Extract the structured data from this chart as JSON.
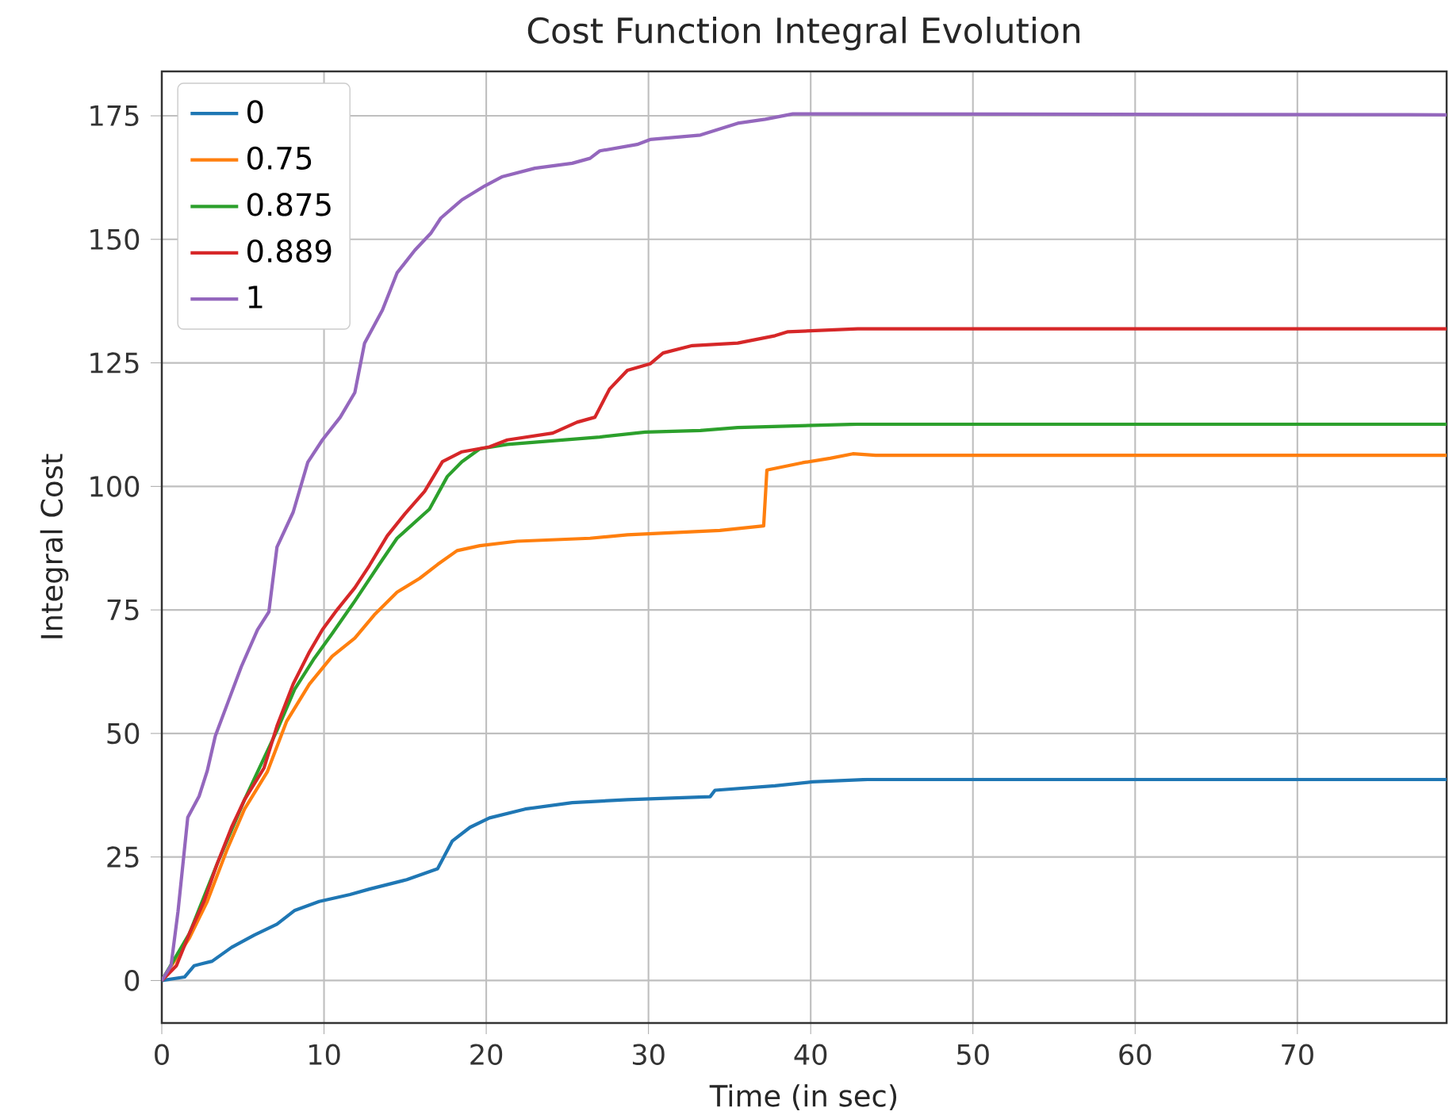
{
  "chart_data": {
    "type": "line",
    "title": "Cost Function Integral Evolution",
    "xlabel": "Time (in sec)",
    "ylabel": "Integral Cost",
    "xlim": [
      0,
      79.2
    ],
    "ylim": [
      -8.6,
      184
    ],
    "xticks": [
      0,
      10,
      20,
      30,
      40,
      50,
      60,
      70
    ],
    "yticks": [
      0,
      25,
      50,
      75,
      100,
      125,
      150,
      175
    ],
    "grid": true,
    "legend": "top left",
    "marker": "none",
    "line_style": "solid",
    "series": [
      {
        "name": "0",
        "color": "#1f77b4",
        "x": [
          0,
          1.4,
          2.0,
          3.1,
          4.3,
          5.7,
          7.1,
          8.2,
          9.7,
          11.6,
          12.8,
          15.1,
          17.0,
          17.9,
          19.0,
          20.2,
          22.4,
          25.3,
          28.7,
          33.8,
          34.1,
          37.8,
          40.1,
          43.5,
          79.2
        ],
        "values": [
          0,
          0.7,
          3,
          3.9,
          6.7,
          9.2,
          11.4,
          14.2,
          16,
          17.4,
          18.5,
          20.4,
          22.6,
          28.2,
          31,
          32.9,
          34.7,
          36,
          36.6,
          37.2,
          38.5,
          39.4,
          40.2,
          40.7,
          40.7
        ]
      },
      {
        "name": "0.75",
        "color": "#ff7f0e",
        "x": [
          0,
          1.7,
          2.8,
          4.0,
          5.1,
          6.5,
          7.7,
          9.1,
          10.5,
          11.9,
          13.1,
          14.5,
          15.9,
          17.0,
          18.2,
          19.6,
          21.9,
          26.4,
          28.7,
          34.4,
          37.1,
          37.3,
          39.5,
          41.2,
          42.6,
          44.0,
          79.2
        ],
        "values": [
          0,
          8.6,
          16,
          26.3,
          34.7,
          42.2,
          52.5,
          60,
          65.6,
          69.3,
          74,
          78.6,
          81.4,
          84.2,
          87,
          88,
          88.9,
          89.5,
          90.2,
          91.1,
          92,
          103.3,
          104.8,
          105.7,
          106.6,
          106.3,
          106.3
        ]
      },
      {
        "name": "0.875",
        "color": "#2ca02c",
        "x": [
          0,
          1.7,
          3.4,
          5.1,
          7.1,
          8.2,
          9.4,
          10.5,
          11.9,
          13.4,
          14.5,
          16.5,
          17.6,
          18.5,
          19.6,
          21.3,
          27.0,
          29.8,
          33.2,
          35.5,
          42.9,
          79.2
        ],
        "values": [
          0,
          9.5,
          23.5,
          36.6,
          50.6,
          59,
          65.2,
          70.2,
          76.8,
          84.2,
          89.5,
          95.4,
          102,
          105,
          107.6,
          108.5,
          110,
          111,
          111.3,
          111.9,
          112.6,
          112.6
        ]
      },
      {
        "name": "0.889",
        "color": "#d62728",
        "x": [
          0,
          0.9,
          1.7,
          2.6,
          3.4,
          4.3,
          5.1,
          6.3,
          7.1,
          8.1,
          9.1,
          9.9,
          10.8,
          11.9,
          12.8,
          13.9,
          15.0,
          16.2,
          17.3,
          18.5,
          20.2,
          21.3,
          24.1,
          25.6,
          26.7,
          27.6,
          28.7,
          30.1,
          30.9,
          32.7,
          35.5,
          37.8,
          38.6,
          42.9,
          79.2
        ],
        "values": [
          0,
          3,
          9.5,
          16,
          23.5,
          31,
          36.6,
          43,
          51.5,
          60,
          66.5,
          71,
          75,
          79.5,
          84,
          90,
          94.5,
          99,
          105,
          107,
          108,
          109.4,
          110.8,
          113,
          114,
          119.7,
          123.5,
          124.8,
          127,
          128.5,
          129,
          130.5,
          131.3,
          131.9,
          131.9
        ]
      },
      {
        "name": "1",
        "color": "#9467bd",
        "x": [
          0,
          0.57,
          1.0,
          1.6,
          2.3,
          2.8,
          3.3,
          4.1,
          4.9,
          5.9,
          6.6,
          7.1,
          8.1,
          9.0,
          9.9,
          11.0,
          11.9,
          12.5,
          13.6,
          14.5,
          15.6,
          16.6,
          17.2,
          18.5,
          19.9,
          21.0,
          23.0,
          25.3,
          26.4,
          27.0,
          29.3,
          30.1,
          33.2,
          35.5,
          37.2,
          38.9,
          42.3,
          79.2
        ],
        "values": [
          0,
          3,
          14,
          33,
          37.3,
          42.4,
          49.5,
          56.5,
          63.5,
          71,
          74.6,
          87.7,
          94.8,
          104.9,
          109.4,
          114,
          119,
          129,
          135.7,
          143.2,
          147.8,
          151.3,
          154.3,
          158,
          160.8,
          162.7,
          164.4,
          165.4,
          166.4,
          167.9,
          169.2,
          170.2,
          171.1,
          173.5,
          174.3,
          175.4,
          175.4,
          175.2
        ]
      }
    ]
  }
}
